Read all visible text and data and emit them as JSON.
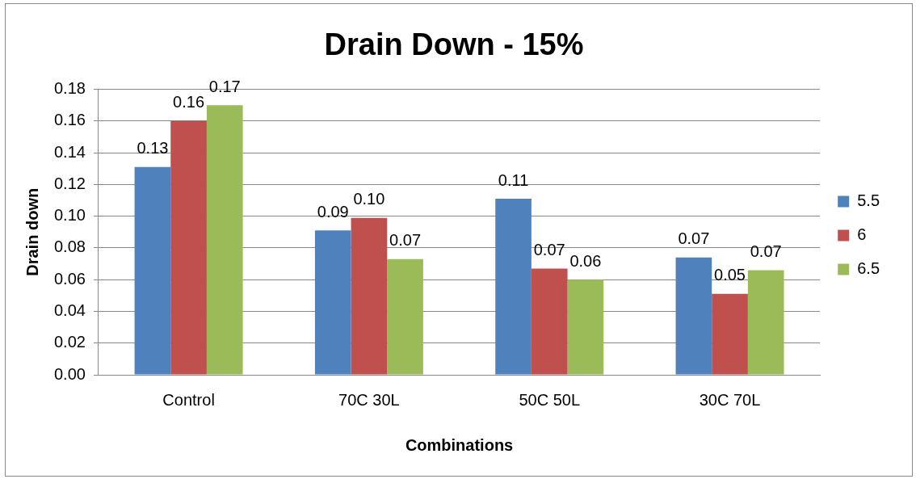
{
  "chart_data": {
    "type": "bar",
    "title": "Drain Down - 15%",
    "xlabel": "Combinations",
    "ylabel": "Drain down",
    "categories": [
      "Control",
      "70C 30L",
      "50C 50L",
      "30C 70L"
    ],
    "series": [
      {
        "name": "5.5",
        "color": "#4f81bd",
        "values": [
          0.131,
          0.091,
          0.111,
          0.074
        ],
        "value_labels": [
          "0.13",
          "0.09",
          "0.11",
          "0.07"
        ]
      },
      {
        "name": "6",
        "color": "#c0504d",
        "values": [
          0.16,
          0.099,
          0.067,
          0.051
        ],
        "value_labels": [
          "0.16",
          "0.10",
          "0.07",
          "0.05"
        ]
      },
      {
        "name": "6.5",
        "color": "#9bbb59",
        "values": [
          0.17,
          0.073,
          0.06,
          0.066
        ],
        "value_labels": [
          "0.17",
          "0.07",
          "0.06",
          "0.07"
        ]
      }
    ],
    "ylim": [
      0,
      0.18
    ],
    "yticks": [
      {
        "value": 0,
        "label": "0.00"
      },
      {
        "value": 0.02,
        "label": "0.02"
      },
      {
        "value": 0.04,
        "label": "0.04"
      },
      {
        "value": 0.06,
        "label": "0.06"
      },
      {
        "value": 0.08,
        "label": "0.08"
      },
      {
        "value": 0.1,
        "label": "0.10"
      },
      {
        "value": 0.12,
        "label": "0.12"
      },
      {
        "value": 0.14,
        "label": "0.14"
      },
      {
        "value": 0.16,
        "label": "0.16"
      },
      {
        "value": 0.18,
        "label": "0.18"
      }
    ],
    "grid": "y",
    "legend": "right"
  }
}
